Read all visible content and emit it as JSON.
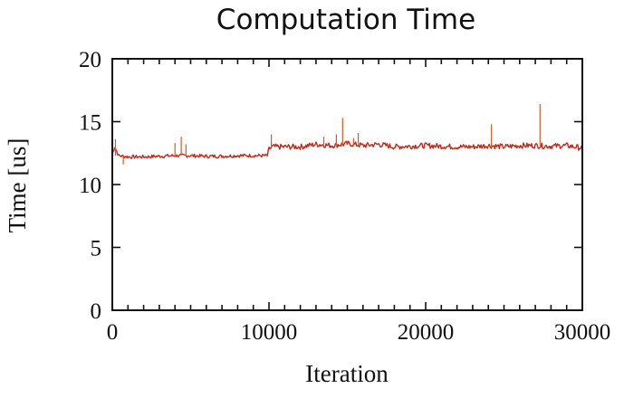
{
  "chart_data": {
    "type": "line",
    "title": "Computation Time",
    "xlabel": "Iteration",
    "ylabel": "Time [us]",
    "xlim": [
      0,
      30000
    ],
    "ylim": [
      0,
      20
    ],
    "x_ticks": [
      0,
      10000,
      20000,
      30000
    ],
    "y_ticks": [
      0,
      5,
      10,
      15,
      20
    ],
    "grid": false,
    "legend": "none",
    "series": [
      {
        "color": "#c62818",
        "x": [
          0,
          150,
          400,
          1000,
          2000,
          3000,
          4000,
          5000,
          6000,
          7000,
          8000,
          9000,
          9900,
          10000,
          10200,
          11000,
          12000,
          13000,
          14000,
          15000,
          16000,
          17000,
          18000,
          19000,
          20000,
          21000,
          22000,
          23000,
          24000,
          25000,
          26000,
          27000,
          28000,
          29000,
          30000
        ],
        "y": [
          12.4,
          13.0,
          12.3,
          12.2,
          12.2,
          12.25,
          12.3,
          12.3,
          12.25,
          12.25,
          12.3,
          12.3,
          12.3,
          12.8,
          13.0,
          13.0,
          13.0,
          13.2,
          13.1,
          13.25,
          13.1,
          13.2,
          13.0,
          13.05,
          13.1,
          13.05,
          13.0,
          13.0,
          13.1,
          13.0,
          13.1,
          13.1,
          13.05,
          13.1,
          12.9
        ]
      }
    ],
    "spikes": [
      {
        "x": 200,
        "y": 13.6
      },
      {
        "x": 700,
        "y": 11.6
      },
      {
        "x": 4000,
        "y": 13.3
      },
      {
        "x": 4400,
        "y": 13.8
      },
      {
        "x": 4700,
        "y": 13.2
      },
      {
        "x": 10150,
        "y": 14.0
      },
      {
        "x": 13500,
        "y": 13.8
      },
      {
        "x": 14300,
        "y": 14.0
      },
      {
        "x": 14700,
        "y": 15.3
      },
      {
        "x": 15400,
        "y": 13.7
      },
      {
        "x": 15700,
        "y": 14.1
      },
      {
        "x": 24200,
        "y": 14.8
      },
      {
        "x": 27300,
        "y": 16.4
      }
    ]
  }
}
